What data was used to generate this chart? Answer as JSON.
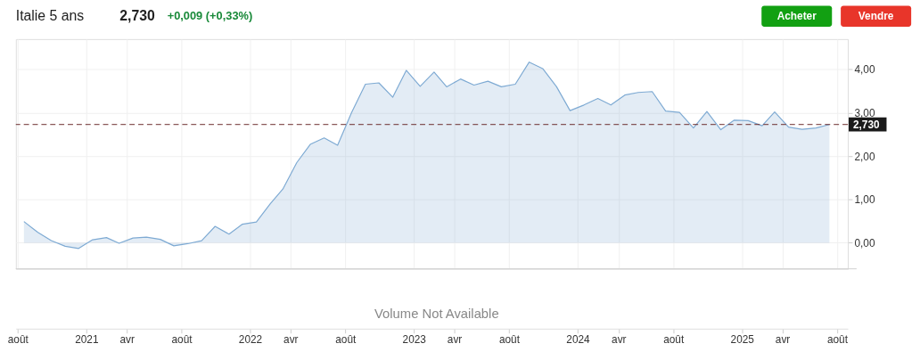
{
  "chart_data": {
    "type": "area",
    "title": "Italie 5 ans",
    "annotations": [
      "2,730",
      "+0,009 (+0,33%)",
      "Acheter",
      "Vendre",
      "Volume Not Available"
    ],
    "x": [
      "2020-08-15",
      "2020-09-15",
      "2020-10-15",
      "2020-11-15",
      "2020-12-15",
      "2021-01-15",
      "2021-02-15",
      "2021-03-15",
      "2021-04-15",
      "2021-05-15",
      "2021-06-15",
      "2021-07-15",
      "2021-08-15",
      "2021-09-15",
      "2021-10-15",
      "2021-11-15",
      "2021-12-15",
      "2022-01-15",
      "2022-02-15",
      "2022-03-15",
      "2022-04-15",
      "2022-05-15",
      "2022-06-15",
      "2022-07-15",
      "2022-08-15",
      "2022-09-15",
      "2022-10-15",
      "2022-11-15",
      "2022-12-15",
      "2023-01-15",
      "2023-02-15",
      "2023-03-15",
      "2023-04-15",
      "2023-05-15",
      "2023-06-15",
      "2023-07-15",
      "2023-08-15",
      "2023-09-15",
      "2023-10-15",
      "2023-11-15",
      "2023-12-15",
      "2024-01-15",
      "2024-02-15",
      "2024-03-15",
      "2024-04-15",
      "2024-05-15",
      "2024-06-15",
      "2024-07-15",
      "2024-08-15",
      "2024-09-15",
      "2024-10-15",
      "2024-11-15",
      "2024-12-15",
      "2025-01-15",
      "2025-02-15",
      "2025-03-15",
      "2025-04-15",
      "2025-05-15",
      "2025-06-15",
      "2025-07-15"
    ],
    "series": [
      {
        "color": "#7eaad3",
        "values": [
          0.49,
          0.24,
          0.05,
          -0.08,
          -0.13,
          0.07,
          0.12,
          -0.01,
          0.11,
          0.13,
          0.08,
          -0.07,
          -0.02,
          0.05,
          0.38,
          0.2,
          0.43,
          0.48,
          0.9,
          1.24,
          1.85,
          2.27,
          2.42,
          2.25,
          3.0,
          3.66,
          3.69,
          3.36,
          3.98,
          3.61,
          3.94,
          3.6,
          3.78,
          3.64,
          3.73,
          3.6,
          3.66,
          4.17,
          4.02,
          3.6,
          3.05,
          3.18,
          3.33,
          3.18,
          3.41,
          3.47,
          3.49,
          3.04,
          3.01,
          2.65,
          3.03,
          2.61,
          2.83,
          2.82,
          2.7,
          3.02,
          2.67,
          2.62,
          2.65,
          2.73
        ]
      }
    ],
    "xlim": [
      "2020-07-28",
      "2025-08-25"
    ],
    "xticks": [
      {
        "value": "2020-08-01",
        "label": "août"
      },
      {
        "value": "2021-01-01",
        "label": "2021"
      },
      {
        "value": "2021-04-01",
        "label": "avr"
      },
      {
        "value": "2021-08-01",
        "label": "août"
      },
      {
        "value": "2022-01-01",
        "label": "2022"
      },
      {
        "value": "2022-04-01",
        "label": "avr"
      },
      {
        "value": "2022-08-01",
        "label": "août"
      },
      {
        "value": "2023-01-01",
        "label": "2023"
      },
      {
        "value": "2023-04-01",
        "label": "avr"
      },
      {
        "value": "2023-08-01",
        "label": "août"
      },
      {
        "value": "2024-01-01",
        "label": "2024"
      },
      {
        "value": "2024-04-01",
        "label": "avr"
      },
      {
        "value": "2024-08-01",
        "label": "août"
      },
      {
        "value": "2025-01-01",
        "label": "2025"
      },
      {
        "value": "2025-04-01",
        "label": "avr"
      },
      {
        "value": "2025-08-01",
        "label": "août"
      }
    ],
    "ylim": [
      -0.6,
      4.7
    ],
    "yticks": [
      {
        "value": 0,
        "label": "0,00"
      },
      {
        "value": 1,
        "label": "1,00"
      },
      {
        "value": 2,
        "label": "2,00"
      },
      {
        "value": 3,
        "label": "3,00"
      },
      {
        "value": 4,
        "label": "4,00"
      }
    ],
    "ref_lines": [
      {
        "axis": "y",
        "value": 2.73,
        "label": "2,730",
        "color": "#6b2b2b",
        "line_style": "dashed"
      }
    ],
    "grid": true
  }
}
